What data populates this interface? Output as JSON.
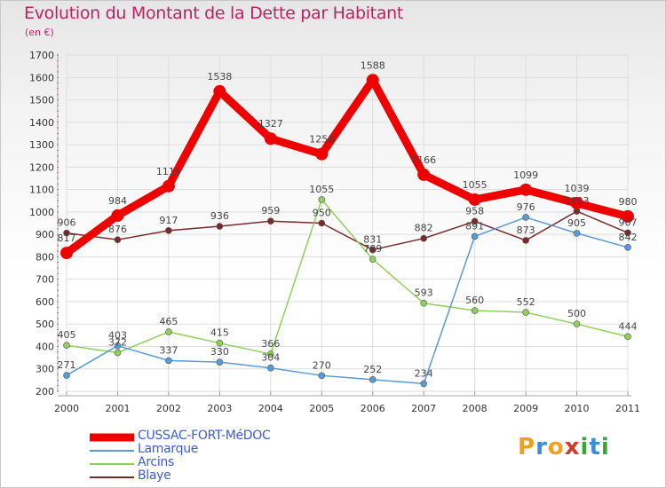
{
  "title": "Evolution du Montant de la Dette par Habitant",
  "subtitle": "(en €)",
  "logo": {
    "letters": [
      "P",
      "r",
      "o",
      "x",
      "i",
      "t",
      "i"
    ],
    "colors": [
      "#f0a020",
      "#3a8fd0",
      "#f0a020",
      "#d23a2a",
      "#3aa63a",
      "#3a8fd0",
      "#3aa63a"
    ]
  },
  "chart_data": {
    "type": "line",
    "categories": [
      "2000",
      "2001",
      "2002",
      "2003",
      "2004",
      "2005",
      "2006",
      "2007",
      "2008",
      "2009",
      "2010",
      "2011"
    ],
    "ylim": [
      200,
      1700
    ],
    "yticks": [
      "200",
      "300",
      "400",
      "500",
      "600",
      "700",
      "800",
      "900",
      "1000",
      "1100",
      "1200",
      "1300",
      "1400",
      "1500",
      "1600",
      "1700"
    ],
    "series": [
      {
        "name": "Blaye",
        "color": "#7a2a2a",
        "values": [
          906,
          876,
          917,
          936,
          959,
          950,
          831,
          882,
          958,
          873,
          1003,
          907
        ],
        "labels": [
          "906",
          "876",
          "917",
          "936",
          "959",
          "950",
          "831",
          "882",
          "958",
          "873",
          "1003",
          "907"
        ]
      },
      {
        "name": "Arcins",
        "color": "#8fd05a",
        "values": [
          405,
          372,
          465,
          415,
          366,
          1055,
          789,
          593,
          560,
          552,
          500,
          444
        ],
        "labels": [
          "405",
          "372",
          "465",
          "415",
          "366",
          "1055",
          "789",
          "593",
          "560",
          "552",
          "500",
          "444"
        ]
      },
      {
        "name": "Lamarque",
        "color": "#5a9ad6",
        "values": [
          271,
          403,
          337,
          330,
          304,
          270,
          252,
          234,
          891,
          976,
          905,
          842
        ],
        "labels": [
          "271",
          "403",
          "337",
          "330",
          "304",
          "270",
          "252",
          "234",
          "891",
          "976",
          "905",
          "842"
        ]
      },
      {
        "name": "CUSSAC-FORT-MéDOC",
        "color": "#ee0000",
        "values": [
          817,
          984,
          1115,
          1538,
          1327,
          1258,
          1588,
          1166,
          1055,
          1099,
          1039,
          980
        ],
        "labels": [
          "817",
          "984",
          "1115",
          "1538",
          "1327",
          "1258",
          "1588",
          "1166",
          "1055",
          "1099",
          "1039",
          "980"
        ]
      }
    ],
    "legend": [
      "CUSSAC-FORT-MéDOC",
      "Lamarque",
      "Arcins",
      "Blaye"
    ],
    "legend_placement": "bottom-left",
    "grid": true
  }
}
